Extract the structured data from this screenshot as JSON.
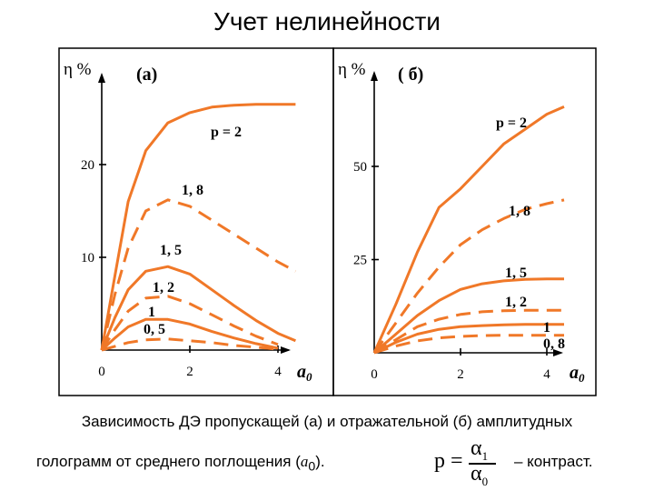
{
  "title": "Учет нелинейности",
  "caption": {
    "line1": "Зависимость ДЭ пропускащей (а) и отражательной (б) амплитудных",
    "line2_prefix": "голограмм от среднего поглощения (",
    "line2_var": "a",
    "line2_sub": "0",
    "line2_suffix": ").",
    "formula_lhs": "p =",
    "formula_num": "α",
    "formula_num_sub": "1",
    "formula_den": "α",
    "formula_den_sub": "0",
    "contrast": "– контраст."
  },
  "colors": {
    "curve": "#f07828",
    "axis": "#000000"
  },
  "chart_data": [
    {
      "type": "line",
      "panel_label": "(a)",
      "ylabel": "η %",
      "xlabel": "a0",
      "xlim": [
        0,
        4.4
      ],
      "ylim": [
        0,
        30
      ],
      "xticks": [
        0,
        2,
        4
      ],
      "yticks": [
        10,
        20
      ],
      "series": [
        {
          "name": "p = 2",
          "style": "solid",
          "x": [
            0,
            0.3,
            0.6,
            1.0,
            1.5,
            2.0,
            2.5,
            3.0,
            3.5,
            4.0,
            4.4
          ],
          "y": [
            0,
            8,
            16,
            21.5,
            24.5,
            25.6,
            26.2,
            26.4,
            26.5,
            26.5,
            26.5
          ]
        },
        {
          "name": "1, 8",
          "style": "dashed",
          "x": [
            0,
            0.3,
            0.6,
            1.0,
            1.5,
            2.0,
            2.5,
            3.0,
            3.5,
            4.0,
            4.4
          ],
          "y": [
            0,
            6,
            11,
            15,
            16.2,
            15.5,
            14,
            12.5,
            11,
            9.5,
            8.5
          ]
        },
        {
          "name": "1, 5",
          "style": "solid",
          "x": [
            0,
            0.3,
            0.6,
            1.0,
            1.5,
            2.0,
            2.5,
            3.0,
            3.5,
            4.0,
            4.4
          ],
          "y": [
            0,
            3.5,
            6.5,
            8.5,
            9.0,
            8.2,
            6.5,
            4.8,
            3.2,
            1.8,
            1.0
          ]
        },
        {
          "name": "1, 2",
          "style": "dashed",
          "x": [
            0,
            0.3,
            0.6,
            1.0,
            1.5,
            2.0,
            2.5,
            3.0,
            3.5,
            4.0
          ],
          "y": [
            0,
            2.2,
            4.2,
            5.6,
            5.8,
            5.0,
            3.8,
            2.6,
            1.5,
            0.6
          ]
        },
        {
          "name": "1",
          "style": "solid",
          "x": [
            0,
            0.3,
            0.6,
            1.0,
            1.5,
            2.0,
            2.5,
            3.0,
            3.5,
            4.0
          ],
          "y": [
            0,
            1.3,
            2.5,
            3.3,
            3.3,
            2.8,
            2.0,
            1.3,
            0.7,
            0.2
          ]
        },
        {
          "name": "0, 5",
          "style": "dashed",
          "x": [
            0,
            0.3,
            0.6,
            1.0,
            1.5,
            2.0,
            2.5,
            3.0,
            3.5,
            4.0
          ],
          "y": [
            0,
            0.4,
            0.8,
            1.1,
            1.2,
            1.0,
            0.8,
            0.5,
            0.3,
            0.1
          ]
        }
      ]
    },
    {
      "type": "line",
      "panel_label": "( б)",
      "ylabel": "η %",
      "xlabel": "a0",
      "xlim": [
        0,
        4.6
      ],
      "ylim": [
        0,
        75
      ],
      "xticks": [
        0,
        2,
        4
      ],
      "yticks": [
        25,
        50
      ],
      "series": [
        {
          "name": "p = 2",
          "style": "solid",
          "x": [
            0,
            0.5,
            1.0,
            1.5,
            2.0,
            2.5,
            3.0,
            3.5,
            4.0,
            4.4
          ],
          "y": [
            0,
            13,
            27,
            39,
            44,
            50,
            56,
            60,
            64,
            66
          ]
        },
        {
          "name": "1, 8",
          "style": "dashed",
          "x": [
            0,
            0.5,
            1.0,
            1.5,
            2.0,
            2.5,
            3.0,
            3.5,
            4.0,
            4.4
          ],
          "y": [
            0,
            8,
            16,
            23,
            29,
            33,
            36,
            38.5,
            40,
            41
          ]
        },
        {
          "name": "1, 5",
          "style": "solid",
          "x": [
            0,
            0.5,
            1.0,
            1.5,
            2.0,
            2.5,
            3.0,
            3.5,
            4.0,
            4.4
          ],
          "y": [
            0,
            5,
            10,
            14,
            17,
            18.5,
            19.3,
            19.7,
            19.8,
            19.8
          ]
        },
        {
          "name": "1, 2",
          "style": "dashed",
          "x": [
            0,
            0.5,
            1.0,
            1.5,
            2.0,
            2.5,
            3.0,
            3.5,
            4.0,
            4.4
          ],
          "y": [
            0,
            3.5,
            7,
            9,
            10.3,
            11,
            11.3,
            11.4,
            11.4,
            11.4
          ]
        },
        {
          "name": "1",
          "style": "solid",
          "x": [
            0,
            0.5,
            1.0,
            1.5,
            2.0,
            2.5,
            3.0,
            3.5,
            4.0,
            4.4
          ],
          "y": [
            0,
            2.8,
            5,
            6.3,
            7,
            7.3,
            7.5,
            7.6,
            7.6,
            7.6
          ]
        },
        {
          "name": "0, 8",
          "style": "dashed",
          "x": [
            0,
            0.5,
            1.0,
            1.5,
            2.0,
            2.5,
            3.0,
            3.5,
            4.0,
            4.4
          ],
          "y": [
            0,
            1.8,
            3.2,
            4,
            4.4,
            4.6,
            4.7,
            4.7,
            4.7,
            4.7
          ]
        }
      ]
    }
  ]
}
